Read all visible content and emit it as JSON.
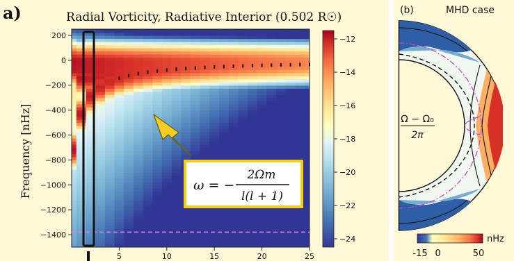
{
  "panel_a": {
    "label": "a)",
    "formula": {
      "lhs": "ω = −",
      "numerator": "2Ωm",
      "denominator": "l(l + 1)"
    }
  },
  "panel_b": {
    "label": "(b)",
    "colorbar_unit": "nHz",
    "inner_label_top": "Ω − Ω₀",
    "inner_label_bottom": "2π"
  },
  "chart_data": [
    {
      "type": "heatmap",
      "title": "Radial Vorticity, Radiative Interior (0.502 R☉)",
      "xlabel": "",
      "ylabel": "Frequency [nHz]",
      "xlim": [
        0,
        25
      ],
      "ylim": [
        -1500,
        250
      ],
      "x_ticks": [
        5,
        10,
        15,
        20,
        25
      ],
      "y_ticks": [
        200,
        0,
        -200,
        -400,
        -600,
        -800,
        -1000,
        -1200,
        -1400
      ],
      "colorbar": {
        "ticks": [
          -12,
          -14,
          -16,
          -18,
          -20,
          -22,
          -24
        ],
        "range": [
          -24.5,
          -11.5
        ],
        "colormap": "RdYlBu_r"
      },
      "ridge_formula": "omega = -2*Omega*m / (l*(l+1))",
      "dashed_reference_line_y": -1380,
      "highlighted_m": 1,
      "colors": {
        "dashed_line": "#e07be8",
        "arrow": "#f7cc22",
        "formula_box": "#f5d010"
      }
    },
    {
      "type": "heatmap",
      "title": "MHD case",
      "colorbar": {
        "ticks": [
          "-15",
          "0",
          "50"
        ],
        "range": [
          -15,
          50
        ],
        "unit": "nHz",
        "colormap": "RdYlBu_r"
      }
    }
  ]
}
